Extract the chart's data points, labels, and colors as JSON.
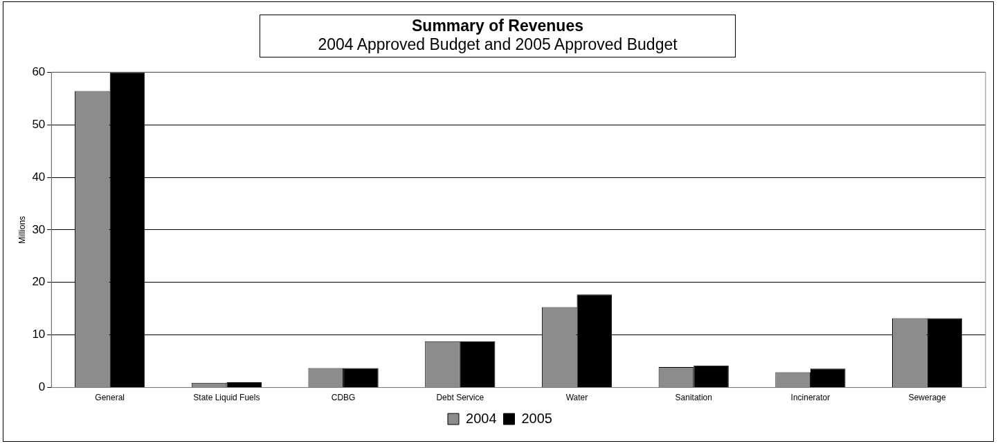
{
  "chart_data": {
    "type": "bar",
    "title": "Summary of Revenues",
    "subtitle": "2004 Approved Budget and 2005 Approved Budget",
    "ylabel": "Millions",
    "categories": [
      "General",
      "State Liquid Fuels",
      "CDBG",
      "Debt Service",
      "Water",
      "Sanitation",
      "Incinerator",
      "Sewerage"
    ],
    "series": [
      {
        "name": "2004",
        "color": "#8c8c8c",
        "values": [
          56.4,
          0.9,
          3.7,
          8.8,
          15.3,
          3.9,
          2.9,
          13.2
        ]
      },
      {
        "name": "2005",
        "color": "#000000",
        "values": [
          60,
          1.0,
          3.7,
          8.8,
          17.7,
          4.2,
          3.6,
          13.2
        ]
      }
    ],
    "ylim": [
      0,
      60
    ],
    "yticks": [
      0,
      10,
      20,
      30,
      40,
      50,
      60
    ],
    "grid": "y",
    "legend": "bottom"
  }
}
